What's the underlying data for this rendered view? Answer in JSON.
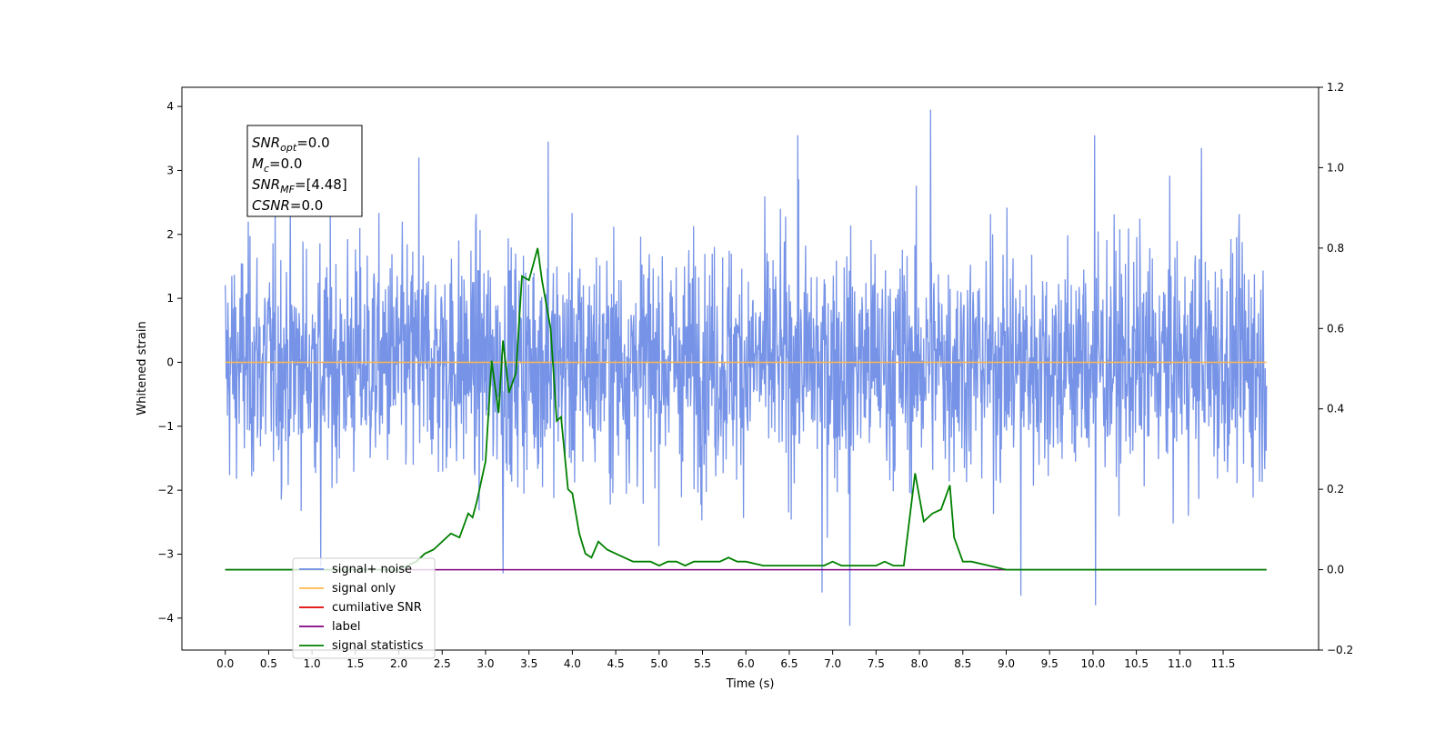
{
  "chart_data": {
    "type": "line",
    "title": "",
    "xlabel": "Time (s)",
    "ylabel": "Whitened strain",
    "y2label": "",
    "xlim": [
      -0.5,
      12.6
    ],
    "ylim": [
      -4.5,
      4.3
    ],
    "y2lim": [
      -0.2,
      1.2
    ],
    "x_ticks": [
      0.0,
      0.5,
      1.0,
      1.5,
      2.0,
      2.5,
      3.0,
      3.5,
      4.0,
      4.5,
      5.0,
      5.5,
      6.0,
      6.5,
      7.0,
      7.5,
      8.0,
      8.5,
      9.0,
      9.5,
      10.0,
      10.5,
      11.0,
      11.5
    ],
    "x_tick_labels": [
      "0.0",
      "0.5",
      "1.0",
      "1.5",
      "2.0",
      "2.5",
      "3.0",
      "3.5",
      "4.0",
      "4.5",
      "5.0",
      "5.5",
      "6.0",
      "6.5",
      "7.0",
      "7.5",
      "8.0",
      "8.5",
      "9.0",
      "9.5",
      "10.0",
      "10.5",
      "11.0",
      "11.5"
    ],
    "y_ticks": [
      -4,
      -3,
      -2,
      -1,
      0,
      1,
      2,
      3,
      4
    ],
    "y_tick_labels": [
      "−4",
      "−3",
      "−2",
      "−1",
      "0",
      "1",
      "2",
      "3",
      "4"
    ],
    "y2_ticks": [
      -0.2,
      0.0,
      0.2,
      0.4,
      0.6,
      0.8,
      1.0,
      1.2
    ],
    "y2_tick_labels": [
      "−0.2",
      "0.0",
      "0.2",
      "0.4",
      "0.6",
      "0.8",
      "1.0",
      "1.2"
    ],
    "grid": false,
    "legend_position": "lower-left",
    "series": [
      {
        "name": "signal+ noise",
        "color": "#6f8de6",
        "axis": "left",
        "style": "noise",
        "x_range": [
          0.0,
          12.0
        ],
        "envelope_typical": [
          -2.0,
          2.0
        ],
        "peaks": [
          {
            "x": 8.13,
            "y": 3.95
          },
          {
            "x": 2.23,
            "y": 3.2
          },
          {
            "x": 3.72,
            "y": 3.45
          },
          {
            "x": 6.6,
            "y": 3.55
          },
          {
            "x": 10.02,
            "y": 3.55
          },
          {
            "x": 11.25,
            "y": 3.35
          },
          {
            "x": 7.2,
            "y": -4.12
          },
          {
            "x": 10.03,
            "y": -3.8
          },
          {
            "x": 9.17,
            "y": -3.65
          },
          {
            "x": 6.88,
            "y": -3.6
          },
          {
            "x": 3.2,
            "y": -3.3
          },
          {
            "x": 1.1,
            "y": -3.2
          }
        ]
      },
      {
        "name": "signal only",
        "color": "#ffb84d",
        "axis": "left",
        "x": [
          0.0,
          12.0
        ],
        "values": [
          0.0,
          0.0
        ]
      },
      {
        "name": "cumilative SNR",
        "color": "#e00000",
        "axis": "left",
        "x": [],
        "values": []
      },
      {
        "name": "label",
        "color": "#800080",
        "axis": "right",
        "x": [
          0.0,
          12.0
        ],
        "values": [
          0.0,
          0.0
        ]
      },
      {
        "name": "signal statistics",
        "color": "#008000",
        "axis": "right",
        "x": [
          0.0,
          2.0,
          2.1,
          2.2,
          2.3,
          2.4,
          2.5,
          2.6,
          2.7,
          2.8,
          2.85,
          2.9,
          3.0,
          3.07,
          3.15,
          3.2,
          3.27,
          3.35,
          3.42,
          3.5,
          3.55,
          3.6,
          3.65,
          3.75,
          3.82,
          3.87,
          3.95,
          4.0,
          4.08,
          4.15,
          4.22,
          4.3,
          4.4,
          4.5,
          4.7,
          4.9,
          5.0,
          5.1,
          5.2,
          5.3,
          5.4,
          5.5,
          5.6,
          5.7,
          5.8,
          5.9,
          6.0,
          6.2,
          6.4,
          6.5,
          6.6,
          6.8,
          6.9,
          7.0,
          7.1,
          7.2,
          7.4,
          7.5,
          7.6,
          7.7,
          7.82,
          7.95,
          8.05,
          8.15,
          8.25,
          8.35,
          8.4,
          8.5,
          8.6,
          8.8,
          9.0,
          9.2,
          10.0,
          12.0
        ],
        "values": [
          0.0,
          0.0,
          0.01,
          0.02,
          0.04,
          0.05,
          0.07,
          0.09,
          0.08,
          0.14,
          0.13,
          0.17,
          0.27,
          0.52,
          0.39,
          0.57,
          0.44,
          0.49,
          0.73,
          0.72,
          0.76,
          0.8,
          0.72,
          0.6,
          0.37,
          0.38,
          0.2,
          0.19,
          0.09,
          0.04,
          0.03,
          0.07,
          0.05,
          0.04,
          0.02,
          0.02,
          0.01,
          0.02,
          0.02,
          0.01,
          0.02,
          0.02,
          0.02,
          0.02,
          0.03,
          0.02,
          0.02,
          0.01,
          0.01,
          0.01,
          0.01,
          0.01,
          0.01,
          0.02,
          0.01,
          0.01,
          0.01,
          0.01,
          0.02,
          0.01,
          0.01,
          0.24,
          0.12,
          0.14,
          0.15,
          0.21,
          0.08,
          0.02,
          0.02,
          0.01,
          0.0,
          0.0,
          0.0,
          0.0
        ]
      }
    ],
    "annotation": {
      "lines": [
        {
          "sym": "SNR",
          "sub": "opt",
          "value": "=0.0"
        },
        {
          "sym": "M",
          "sub": "c",
          "value": "=0.0"
        },
        {
          "sym": "SNR",
          "sub": "MF",
          "value": "=[4.48]"
        },
        {
          "sym": "CSNR",
          "sub": "",
          "value": "=0.0"
        }
      ]
    },
    "legend": [
      {
        "label": "signal+ noise",
        "color": "#6f8de6"
      },
      {
        "label": "signal only",
        "color": "#ffb84d"
      },
      {
        "label": "cumilative SNR",
        "color": "#e00000"
      },
      {
        "label": "label",
        "color": "#800080"
      },
      {
        "label": "signal statistics",
        "color": "#008000"
      }
    ]
  }
}
